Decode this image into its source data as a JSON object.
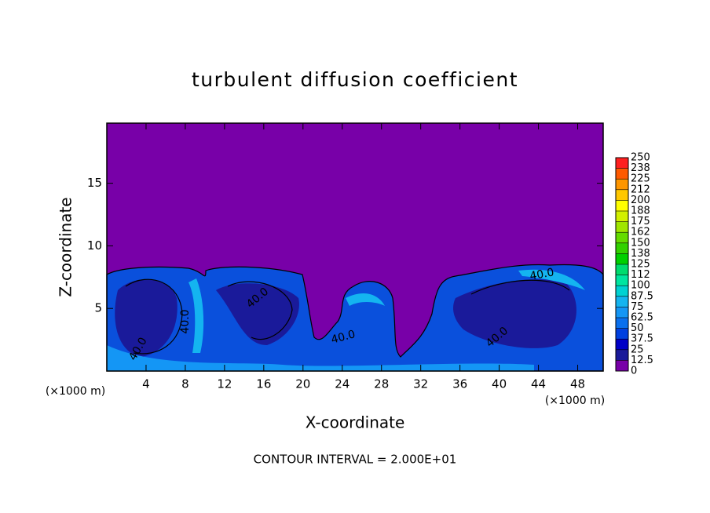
{
  "chart_data": {
    "type": "contour",
    "title": "turbulent diffusion coefficient",
    "x_label": "X-coordinate",
    "y_label": "Z-coordinate",
    "x_unit": "(×1000 m)",
    "note": "CONTOUR INTERVAL = 2.000E+01",
    "xlim": [
      0,
      50.6
    ],
    "ylim": [
      0,
      19.8
    ],
    "xticks": [
      4,
      8,
      12,
      16,
      20,
      24,
      28,
      32,
      36,
      40,
      44,
      48
    ],
    "yticks": [
      5,
      10,
      15
    ],
    "contour_labels": [
      "40.0",
      "40.0",
      "40.0",
      "40.0",
      "40.0",
      "40.0"
    ],
    "colorbar": {
      "levels": [
        0,
        12.5,
        25,
        37.5,
        50,
        62.5,
        75,
        87.5,
        100,
        {
          "value": 112.5,
          "label": "112"
        },
        125,
        {
          "value": 137.5,
          "label": "138"
        },
        150,
        {
          "value": 162.5,
          "label": "162"
        },
        175,
        {
          "value": 187.5,
          "label": "188"
        },
        200,
        {
          "value": 212.5,
          "label": "212"
        },
        225,
        {
          "value": 237.5,
          "label": "238"
        },
        250
      ],
      "colors": [
        "#7800a8",
        "#1a1a9a",
        "#0000c8",
        "#0040e0",
        "#0a70ee",
        "#1496f5",
        "#14b4f0",
        "#00d2d2",
        "#00e6a0",
        "#00dc6e",
        "#00d000",
        "#32d200",
        "#64dc00",
        "#a0e600",
        "#d2f000",
        "#ffff00",
        "#ffc800",
        "#ff9600",
        "#ff5a00",
        "#ff2020"
      ]
    }
  }
}
